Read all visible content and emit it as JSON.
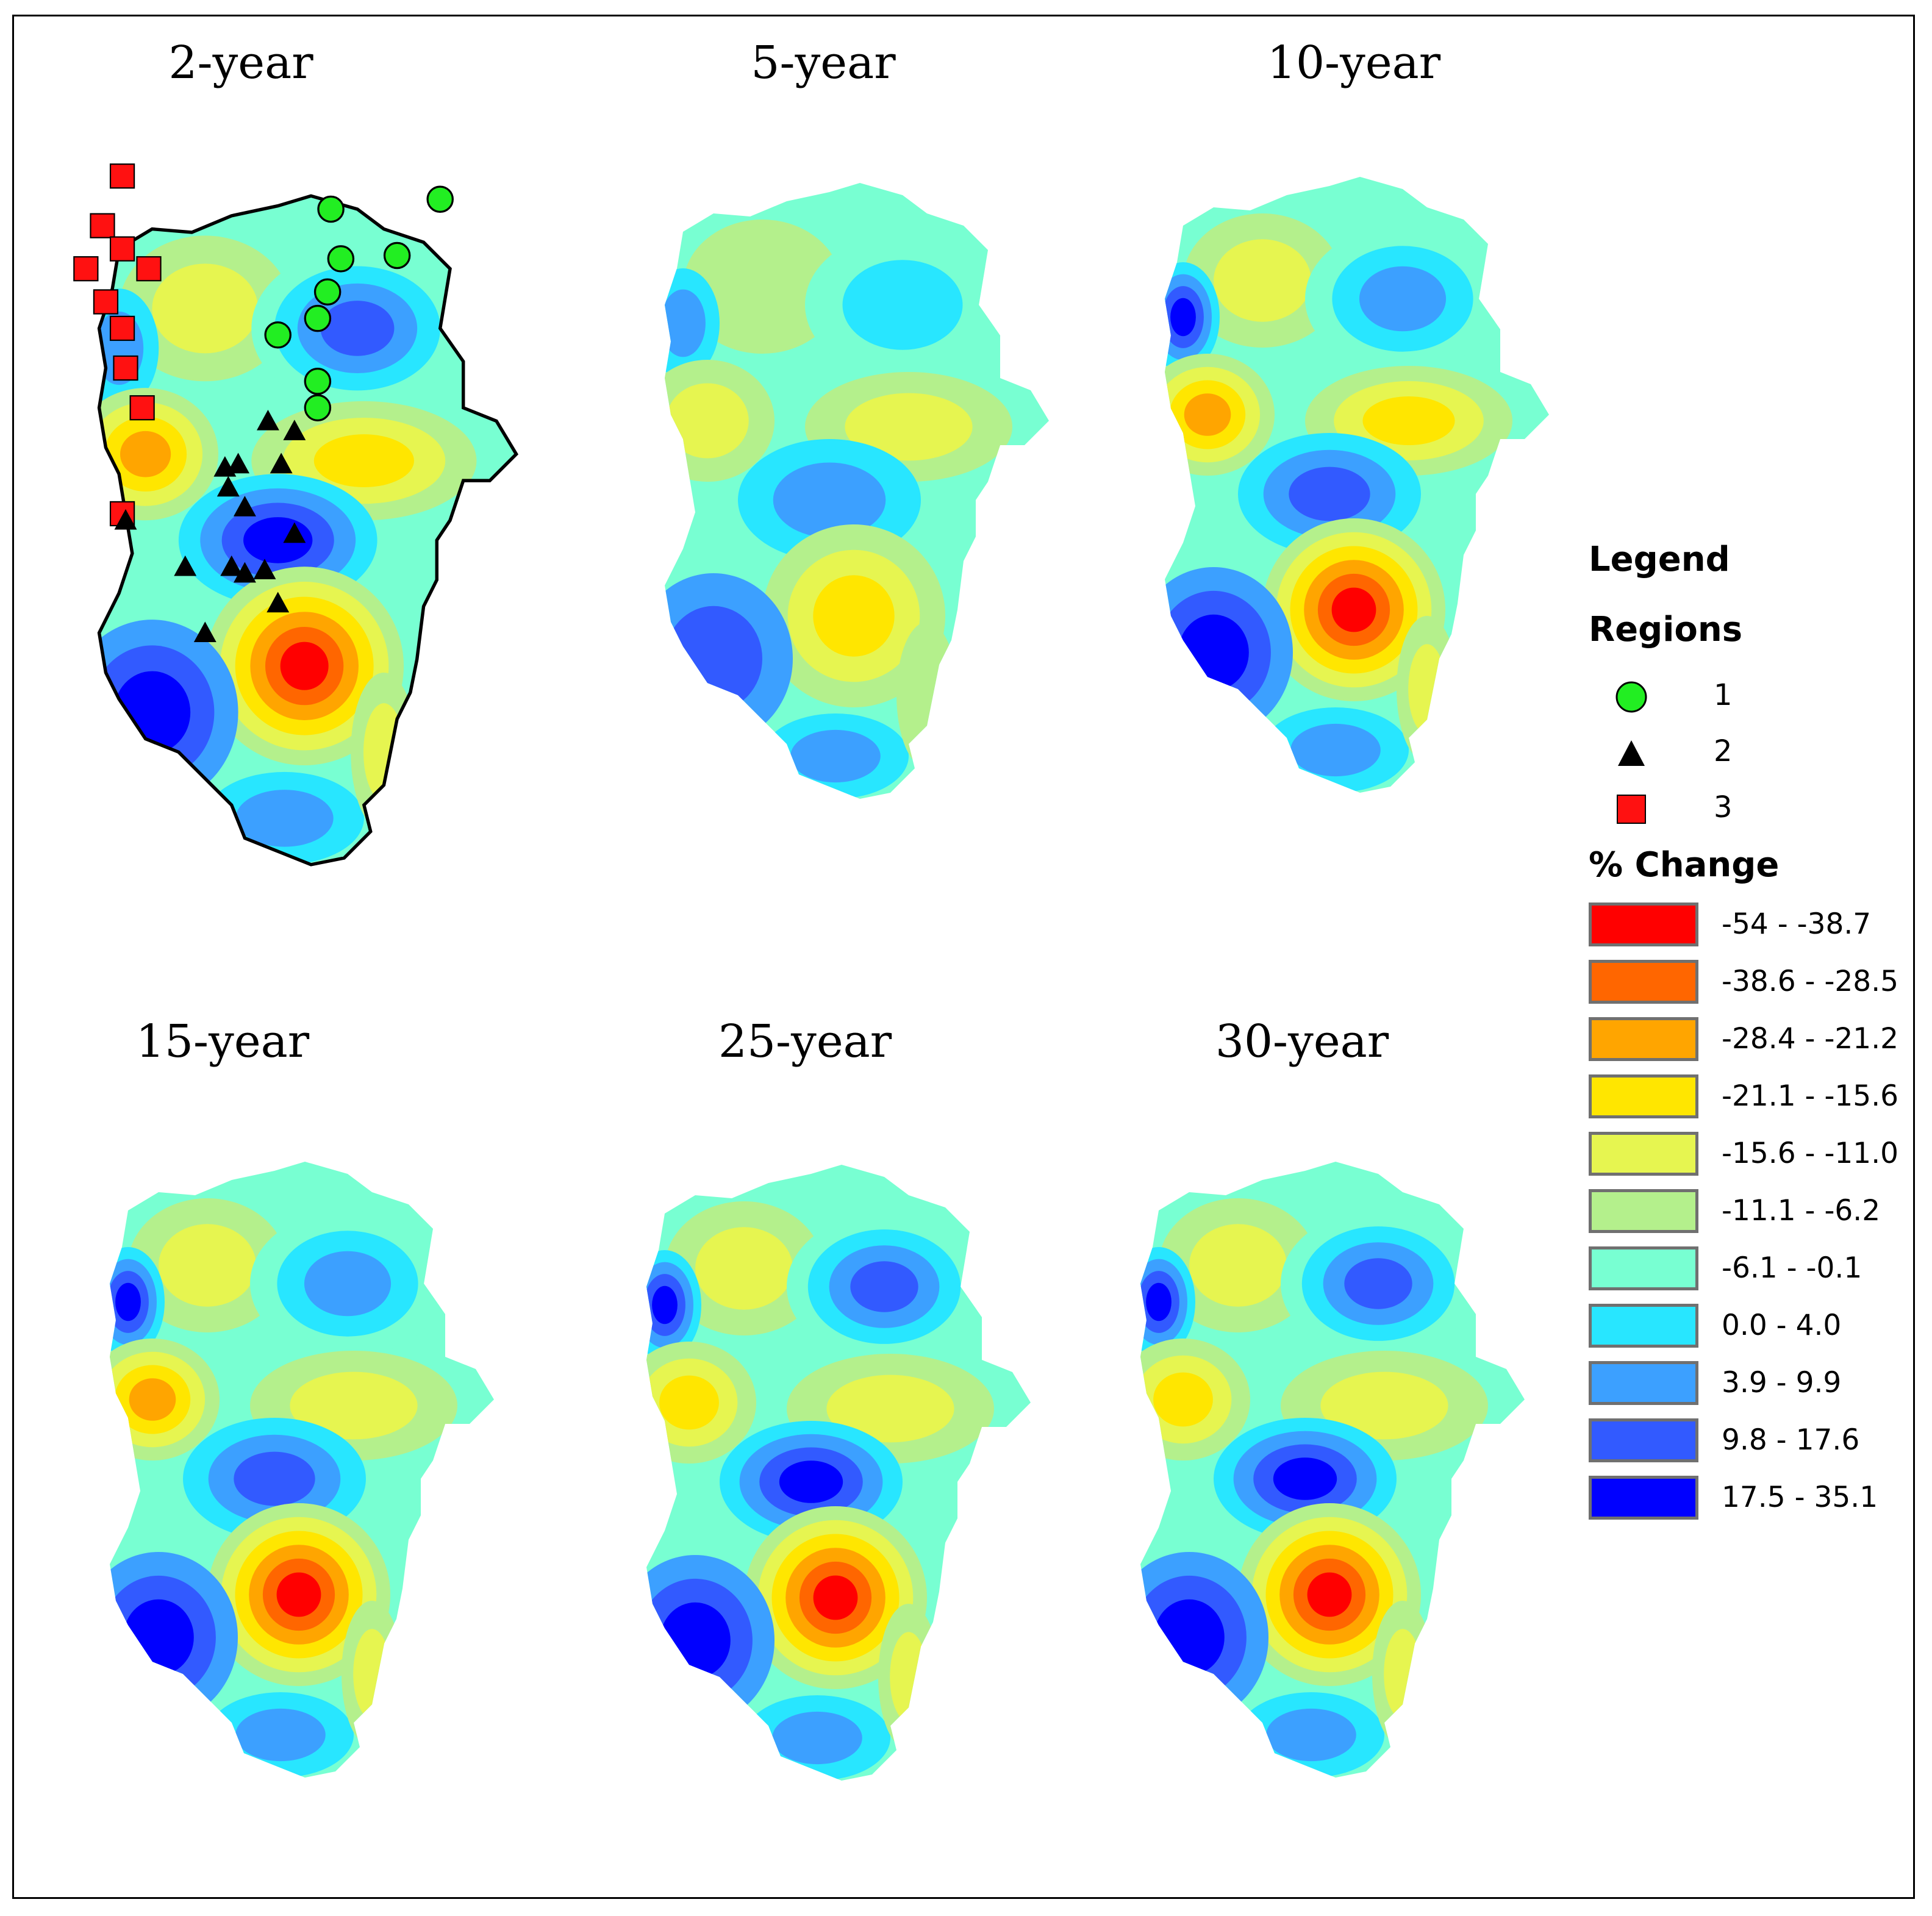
{
  "figure": {
    "panels": [
      {
        "title": "2-year"
      },
      {
        "title": "5-year"
      },
      {
        "title": "10-year"
      },
      {
        "title": "15-year"
      },
      {
        "title": "25-year"
      },
      {
        "title": "30-year"
      }
    ],
    "legend": {
      "title": "Legend",
      "regions_title": "Regions",
      "regions": [
        {
          "label": "1",
          "symbol": "green-circle",
          "color": "#22ee22"
        },
        {
          "label": "2",
          "symbol": "black-triangle",
          "color": "#000000"
        },
        {
          "label": "3",
          "symbol": "red-square",
          "color": "#ff1111"
        }
      ],
      "change_title": "% Change",
      "classes": [
        {
          "label": "-54 - -38.7",
          "color": "#ff0000"
        },
        {
          "label": "-38.6 - -28.5",
          "color": "#ff6600"
        },
        {
          "label": "-28.4 - -21.2",
          "color": "#ffa500"
        },
        {
          "label": "-21.1 - -15.6",
          "color": "#ffe600"
        },
        {
          "label": "-15.6 - -11.0",
          "color": "#e6f550"
        },
        {
          "label": "-11.1 - -6.2",
          "color": "#b4f08c"
        },
        {
          "label": "-6.1 - -0.1",
          "color": "#78ffd2"
        },
        {
          "label": "0.0 - 4.0",
          "color": "#28e6ff"
        },
        {
          "label": "3.9 - 9.9",
          "color": "#3ca0ff"
        },
        {
          "label": "9.8 - 17.6",
          "color": "#325aff"
        },
        {
          "label": "17.5 - 35.1",
          "color": "#0000ff"
        }
      ]
    }
  }
}
